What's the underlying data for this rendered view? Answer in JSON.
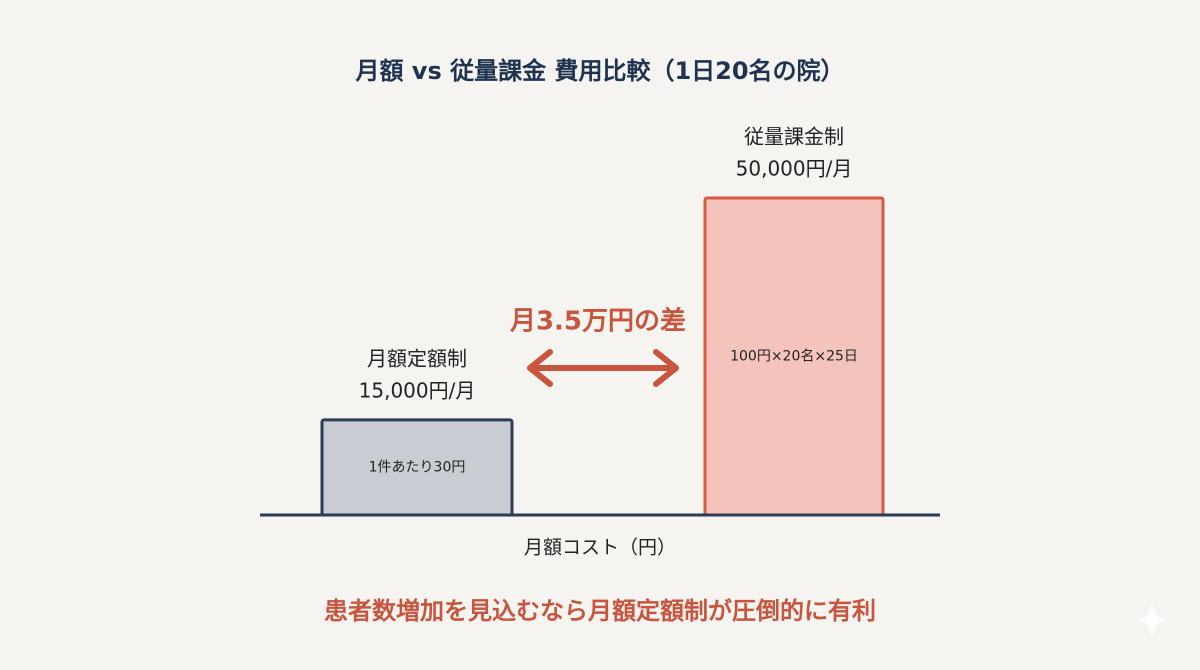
{
  "chart_data": {
    "type": "bar",
    "title": "月額 vs 従量課金 費用比較（1日20名の院）",
    "categories": [
      "月額定額制",
      "従量課金制"
    ],
    "values": [
      15000,
      50000
    ],
    "value_labels": [
      "15,000円/月",
      "50,000円/月"
    ],
    "notes": [
      "1件あたり30円",
      "100円×20名×25日"
    ],
    "colors": [
      "#c9ccd3",
      "#f4c4bc"
    ],
    "edge_colors": [
      "#2c3e55",
      "#d65a45"
    ],
    "x_label": "月額コスト（円）",
    "annotation": "月3.5万円の差",
    "footer": "患者数増加を見込むなら月額定額制が圧倒的に有利"
  }
}
